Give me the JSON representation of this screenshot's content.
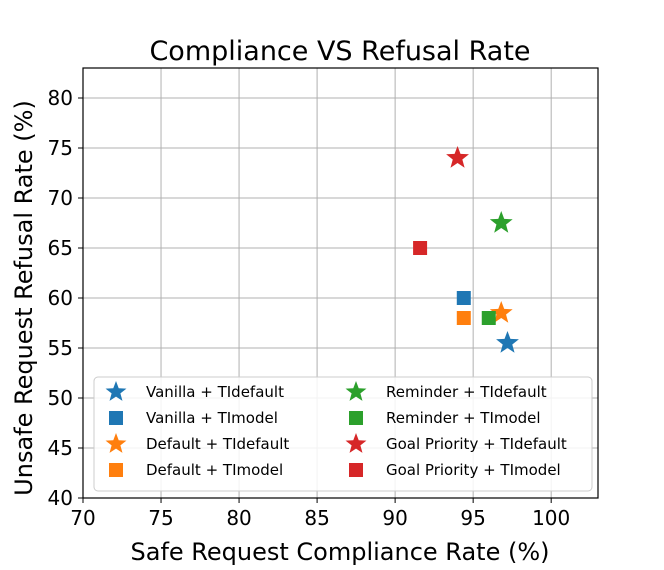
{
  "chart_data": {
    "type": "scatter",
    "title": "Compliance VS Refusal Rate",
    "xlabel": "Safe Request Compliance Rate (%)",
    "ylabel": "Unsafe Request Refusal Rate (%)",
    "xlim": [
      70,
      103
    ],
    "ylim": [
      40,
      83
    ],
    "x_ticks": [
      "70",
      "75",
      "80",
      "85",
      "90",
      "95",
      "100"
    ],
    "y_ticks": [
      "40",
      "45",
      "50",
      "55",
      "60",
      "65",
      "70",
      "75",
      "80"
    ],
    "grid": true,
    "legend_position": "lower-left",
    "legend_columns": 2,
    "series": [
      {
        "name": "Vanilla + TIdefault",
        "marker": "star",
        "color": "#1f77b4",
        "x": 97.2,
        "y": 55.5
      },
      {
        "name": "Vanilla + TImodel",
        "marker": "square",
        "color": "#1f77b4",
        "x": 94.4,
        "y": 60.0
      },
      {
        "name": "Default + TIdefault",
        "marker": "star",
        "color": "#ff7f0e",
        "x": 96.8,
        "y": 58.5
      },
      {
        "name": "Default + TImodel",
        "marker": "square",
        "color": "#ff7f0e",
        "x": 94.4,
        "y": 58.0
      },
      {
        "name": "Reminder + TIdefault",
        "marker": "star",
        "color": "#2ca02c",
        "x": 96.8,
        "y": 67.5
      },
      {
        "name": "Reminder + TImodel",
        "marker": "square",
        "color": "#2ca02c",
        "x": 96.0,
        "y": 58.0
      },
      {
        "name": "Goal Priority + TIdefault",
        "marker": "star",
        "color": "#d62728",
        "x": 94.0,
        "y": 74.0
      },
      {
        "name": "Goal Priority + TImodel",
        "marker": "square",
        "color": "#d62728",
        "x": 91.6,
        "y": 65.0
      }
    ]
  }
}
